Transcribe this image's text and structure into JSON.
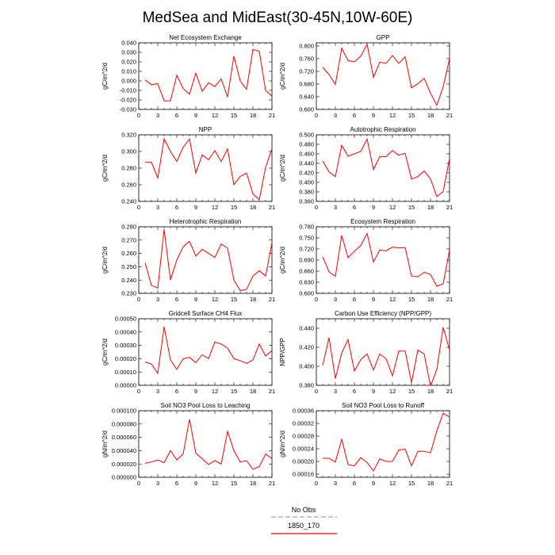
{
  "title": "MedSea and MidEast(30-45N,10W-60E)",
  "legend": {
    "placement": "bottom-center",
    "entries": [
      {
        "label": "No Obs",
        "color": "#9999ff",
        "dash": true
      },
      {
        "label": "1850_170",
        "color": "#ff0000",
        "dash": false
      }
    ]
  },
  "chart_data": [
    {
      "type": "line",
      "title": "Net Ecosystem Exchange",
      "xlabel": "",
      "ylabel": "gC/m^2/d",
      "x": [
        1,
        2,
        3,
        4,
        5,
        6,
        7,
        8,
        9,
        10,
        11,
        12,
        13,
        14,
        15,
        16,
        17,
        18,
        19,
        20,
        21
      ],
      "xlim": [
        0,
        21
      ],
      "xticks": [
        0,
        3,
        6,
        9,
        12,
        15,
        18,
        21
      ],
      "ylim": [
        -0.03,
        0.04
      ],
      "yticks": [
        -0.03,
        -0.02,
        -0.01,
        0.0,
        0.01,
        0.02,
        0.03,
        0.04
      ],
      "yticklabels": [
        "-0.030",
        "-0.020",
        "-0.010",
        "0.000",
        "0.010",
        "0.020",
        "0.030",
        "0.040"
      ],
      "series": [
        {
          "color": "#ff0000",
          "values": [
            0.001,
            -0.004,
            -0.003,
            -0.021,
            -0.021,
            0.006,
            -0.008,
            -0.014,
            0.008,
            -0.011,
            -0.002,
            -0.006,
            0.002,
            -0.017,
            0.026,
            0.0,
            -0.009,
            0.033,
            0.031,
            -0.01,
            -0.016
          ]
        }
      ]
    },
    {
      "type": "line",
      "title": "GPP",
      "xlabel": "",
      "ylabel": "gC/m^2/d",
      "x": [
        1,
        2,
        3,
        4,
        5,
        6,
        7,
        8,
        9,
        10,
        11,
        12,
        13,
        14,
        15,
        16,
        17,
        18,
        19,
        20,
        21
      ],
      "xlim": [
        0,
        21
      ],
      "xticks": [
        0,
        3,
        6,
        9,
        12,
        15,
        18,
        21
      ],
      "ylim": [
        0.6,
        0.81
      ],
      "yticks": [
        0.6,
        0.64,
        0.68,
        0.72,
        0.76,
        0.8
      ],
      "yticklabels": [
        "0.600",
        "0.640",
        "0.680",
        "0.720",
        "0.760",
        "0.800"
      ],
      "series": [
        {
          "color": "#ff0000",
          "values": [
            0.733,
            0.71,
            0.679,
            0.793,
            0.754,
            0.75,
            0.768,
            0.806,
            0.701,
            0.749,
            0.745,
            0.77,
            0.745,
            0.766,
            0.668,
            0.681,
            0.698,
            0.651,
            0.613,
            0.672,
            0.76
          ]
        }
      ]
    },
    {
      "type": "line",
      "title": "NPP",
      "xlabel": "",
      "ylabel": "gC/m^2/d",
      "x": [
        1,
        2,
        3,
        4,
        5,
        6,
        7,
        8,
        9,
        10,
        11,
        12,
        13,
        14,
        15,
        16,
        17,
        18,
        19,
        20,
        21
      ],
      "xlim": [
        0,
        21
      ],
      "xticks": [
        0,
        3,
        6,
        9,
        12,
        15,
        18,
        21
      ],
      "ylim": [
        0.24,
        0.32
      ],
      "yticks": [
        0.24,
        0.26,
        0.28,
        0.3,
        0.32
      ],
      "yticklabels": [
        "0.240",
        "0.260",
        "0.280",
        "0.300",
        "0.320"
      ],
      "series": [
        {
          "color": "#ff0000",
          "values": [
            0.287,
            0.287,
            0.268,
            0.315,
            0.3,
            0.288,
            0.305,
            0.315,
            0.274,
            0.296,
            0.29,
            0.301,
            0.288,
            0.303,
            0.26,
            0.27,
            0.274,
            0.249,
            0.242,
            0.281,
            0.303
          ]
        }
      ]
    },
    {
      "type": "line",
      "title": "Autotrophic Respiration",
      "xlabel": "",
      "ylabel": "gC/m^2/d",
      "x": [
        1,
        2,
        3,
        4,
        5,
        6,
        7,
        8,
        9,
        10,
        11,
        12,
        13,
        14,
        15,
        16,
        17,
        18,
        19,
        20,
        21
      ],
      "xlim": [
        0,
        21
      ],
      "xticks": [
        0,
        3,
        6,
        9,
        12,
        15,
        18,
        21
      ],
      "ylim": [
        0.36,
        0.5
      ],
      "yticks": [
        0.36,
        0.38,
        0.4,
        0.42,
        0.44,
        0.46,
        0.48,
        0.5
      ],
      "yticklabels": [
        "0.360",
        "0.380",
        "0.400",
        "0.420",
        "0.440",
        "0.460",
        "0.480",
        "0.500"
      ],
      "series": [
        {
          "color": "#ff0000",
          "values": [
            0.445,
            0.422,
            0.412,
            0.478,
            0.455,
            0.46,
            0.465,
            0.491,
            0.427,
            0.454,
            0.454,
            0.467,
            0.457,
            0.461,
            0.407,
            0.412,
            0.424,
            0.407,
            0.37,
            0.381,
            0.45
          ]
        }
      ]
    },
    {
      "type": "line",
      "title": "Heterotrophic Respiration",
      "xlabel": "",
      "ylabel": "gC/m^2/d",
      "x": [
        1,
        2,
        3,
        4,
        5,
        6,
        7,
        8,
        9,
        10,
        11,
        12,
        13,
        14,
        15,
        16,
        17,
        18,
        19,
        20,
        21
      ],
      "xlim": [
        0,
        21
      ],
      "xticks": [
        0,
        3,
        6,
        9,
        12,
        15,
        18,
        21
      ],
      "ylim": [
        0.23,
        0.28
      ],
      "yticks": [
        0.23,
        0.24,
        0.25,
        0.26,
        0.27,
        0.28
      ],
      "yticklabels": [
        "0.230",
        "0.240",
        "0.250",
        "0.260",
        "0.270",
        "0.280"
      ],
      "series": [
        {
          "color": "#ff0000",
          "values": [
            0.253,
            0.236,
            0.234,
            0.278,
            0.24,
            0.255,
            0.265,
            0.269,
            0.258,
            0.263,
            0.26,
            0.257,
            0.267,
            0.264,
            0.24,
            0.232,
            0.233,
            0.243,
            0.247,
            0.243,
            0.268
          ]
        }
      ]
    },
    {
      "type": "line",
      "title": "Ecosystem Respiration",
      "xlabel": "",
      "ylabel": "gC/m^2/d",
      "x": [
        1,
        2,
        3,
        4,
        5,
        6,
        7,
        8,
        9,
        10,
        11,
        12,
        13,
        14,
        15,
        16,
        17,
        18,
        19,
        20,
        21
      ],
      "xlim": [
        0,
        21
      ],
      "xticks": [
        0,
        3,
        6,
        9,
        12,
        15,
        18,
        21
      ],
      "ylim": [
        0.6,
        0.78
      ],
      "yticks": [
        0.6,
        0.63,
        0.66,
        0.69,
        0.72,
        0.75,
        0.78
      ],
      "yticklabels": [
        "0.600",
        "0.630",
        "0.660",
        "0.690",
        "0.720",
        "0.750",
        "0.780"
      ],
      "series": [
        {
          "color": "#ff0000",
          "values": [
            0.699,
            0.658,
            0.646,
            0.757,
            0.696,
            0.714,
            0.729,
            0.762,
            0.685,
            0.717,
            0.715,
            0.725,
            0.723,
            0.724,
            0.647,
            0.645,
            0.657,
            0.651,
            0.619,
            0.626,
            0.717
          ]
        }
      ]
    },
    {
      "type": "line",
      "title": "Gridcell Surface CH4 Flux",
      "xlabel": "",
      "ylabel": "gC/m^2/d",
      "x": [
        1,
        2,
        3,
        4,
        5,
        6,
        7,
        8,
        9,
        10,
        11,
        12,
        13,
        14,
        15,
        16,
        17,
        18,
        19,
        20,
        21
      ],
      "xlim": [
        0,
        21
      ],
      "xticks": [
        0,
        3,
        6,
        9,
        12,
        15,
        18,
        21
      ],
      "ylim": [
        0,
        0.0005
      ],
      "yticks": [
        0,
        0.0001,
        0.0002,
        0.0003,
        0.0004,
        0.0005
      ],
      "yticklabels": [
        "0.00000",
        "0.00010",
        "0.00020",
        "0.00030",
        "0.00040",
        "0.00050"
      ],
      "series": [
        {
          "color": "#ff0000",
          "values": [
            0.000175,
            0.00016,
            9e-05,
            0.00044,
            0.00019,
            0.00012,
            0.0002,
            0.00021,
            0.00017,
            0.00023,
            0.0002,
            0.000325,
            0.00031,
            0.00028,
            0.0002,
            0.000185,
            0.000165,
            0.00019,
            0.00031,
            0.00022,
            0.00026
          ]
        }
      ]
    },
    {
      "type": "line",
      "title": "Carbon Use Efficiency (NPP/GPP)",
      "xlabel": "",
      "ylabel": "NPP/GPP",
      "x": [
        1,
        2,
        3,
        4,
        5,
        6,
        7,
        8,
        9,
        10,
        11,
        12,
        13,
        14,
        15,
        16,
        17,
        18,
        19,
        20,
        21
      ],
      "xlim": [
        0,
        21
      ],
      "xticks": [
        0,
        3,
        6,
        9,
        12,
        15,
        18,
        21
      ],
      "ylim": [
        0.38,
        0.45
      ],
      "yticks": [
        0.38,
        0.4,
        0.42,
        0.44
      ],
      "yticklabels": [
        "0.380",
        "0.400",
        "0.420",
        "0.440"
      ],
      "series": [
        {
          "color": "#ff0000",
          "values": [
            0.401,
            0.43,
            0.387,
            0.414,
            0.428,
            0.395,
            0.407,
            0.413,
            0.396,
            0.413,
            0.408,
            0.39,
            0.416,
            0.416,
            0.383,
            0.417,
            0.413,
            0.379,
            0.397,
            0.441,
            0.417
          ]
        }
      ]
    },
    {
      "type": "line",
      "title": "Soil NO3 Pool Loss to Leaching",
      "xlabel": "",
      "ylabel": "gN/m^2/d",
      "x": [
        1,
        2,
        3,
        4,
        5,
        6,
        7,
        8,
        9,
        10,
        11,
        12,
        13,
        14,
        15,
        16,
        17,
        18,
        19,
        20,
        21
      ],
      "xlim": [
        0,
        21
      ],
      "xticks": [
        0,
        3,
        6,
        9,
        12,
        15,
        18,
        21
      ],
      "ylim": [
        0,
        0.0001
      ],
      "yticks": [
        0,
        2e-05,
        4e-05,
        6e-05,
        8e-05,
        0.0001
      ],
      "yticklabels": [
        "0.000000",
        "0.000020",
        "0.000040",
        "0.000060",
        "0.000080",
        "0.000100"
      ],
      "series": [
        {
          "color": "#ff0000",
          "values": [
            2.1e-05,
            2.3e-05,
            2.6e-05,
            2.2e-05,
            4e-05,
            2.6e-05,
            3.5e-05,
            8.7e-05,
            3.6e-05,
            2.8e-05,
            1.9e-05,
            2.5e-05,
            2e-05,
            6.9e-05,
            4e-05,
            2.3e-05,
            2.5e-05,
            1.2e-05,
            1.6e-05,
            3.5e-05,
            2.8e-05
          ]
        }
      ]
    },
    {
      "type": "line",
      "title": "Soil NO3 Pool Loss to Runoff",
      "xlabel": "",
      "ylabel": "gN/m^2/d",
      "x": [
        1,
        2,
        3,
        4,
        5,
        6,
        7,
        8,
        9,
        10,
        11,
        12,
        13,
        14,
        15,
        16,
        17,
        18,
        19,
        20,
        21
      ],
      "xlim": [
        0,
        21
      ],
      "xticks": [
        0,
        3,
        6,
        9,
        12,
        15,
        18,
        21
      ],
      "ylim": [
        0.00015,
        0.00036
      ],
      "yticks": [
        0.00016,
        0.0002,
        0.00024,
        0.00028,
        0.00032,
        0.00036
      ],
      "yticklabels": [
        "0.00016",
        "0.00020",
        "0.00024",
        "0.00028",
        "0.00032",
        "0.00036"
      ],
      "series": [
        {
          "color": "#ff0000",
          "values": [
            0.00021,
            0.00021,
            0.000198,
            0.00027,
            0.00019,
            0.000186,
            0.000212,
            0.000197,
            0.00017,
            0.000208,
            0.0002,
            0.0002,
            0.000236,
            0.000239,
            0.000186,
            0.000232,
            0.000232,
            0.000227,
            0.000297,
            0.000352,
            0.00034
          ]
        }
      ]
    }
  ]
}
